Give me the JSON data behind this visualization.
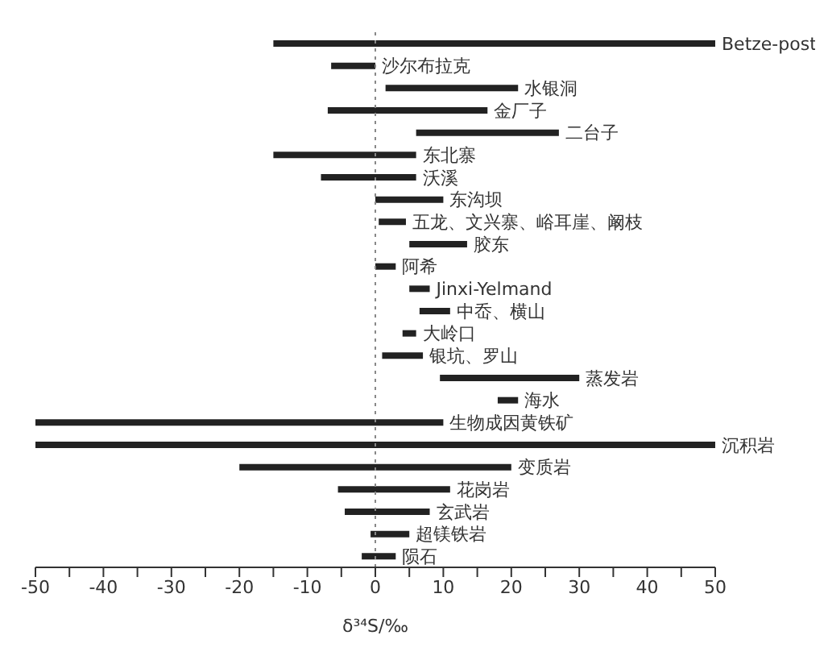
{
  "chart_data": {
    "type": "bar",
    "orientation": "horizontal",
    "xlabel": "δ³⁴S/‰",
    "categories": [
      "Betze-post",
      "沙尔布拉克",
      "水银洞",
      "金厂子",
      "二台子",
      "东北寨",
      "沃溪",
      "东沟坝",
      "五龙、文兴寨、峪耳崖、阚枝",
      "胶东",
      "阿希",
      "Jinxi-Yelmand",
      "中岙、横山",
      "大岭口",
      "银坑、罗山",
      "蒸发岩",
      "海水",
      "生物成因黄铁矿",
      "沉积岩",
      "变质岩",
      "花岗岩",
      "玄武岩",
      "超镁铁岩",
      "陨石"
    ],
    "base": [
      -15,
      -6.5,
      1.5,
      -7,
      6,
      -15,
      -8,
      0,
      0.5,
      5,
      0,
      5,
      6.5,
      4,
      1,
      9.5,
      18,
      -50,
      -50,
      -20,
      -5.5,
      -4.5,
      -0.7,
      -2
    ],
    "values": [
      65,
      6.5,
      19.5,
      23.5,
      21,
      21,
      14,
      10,
      4,
      8.5,
      3,
      3,
      4.5,
      2,
      6,
      20.5,
      3,
      60,
      100,
      40,
      16.5,
      12.5,
      5.7,
      5
    ],
    "color": "#222222",
    "xlim": [
      -50,
      50
    ],
    "xticks": [
      -50,
      {
        "value": -45,
        "label": null
      },
      -40,
      {
        "value": -35,
        "label": null
      },
      -30,
      {
        "value": -25,
        "label": null
      },
      -20,
      {
        "value": -15,
        "label": null
      },
      -10,
      {
        "value": -5,
        "label": null
      },
      0,
      {
        "value": 5,
        "label": null
      },
      10,
      {
        "value": 15,
        "label": null
      },
      20,
      {
        "value": 25,
        "label": null
      },
      30,
      {
        "value": 35,
        "label": null
      },
      40,
      {
        "value": 45,
        "label": null
      },
      50
    ],
    "ref_lines": [
      {
        "axis": "x",
        "value": 0,
        "line_style": "dotted",
        "color": "#888888"
      }
    ],
    "grid": false,
    "legend": false
  }
}
